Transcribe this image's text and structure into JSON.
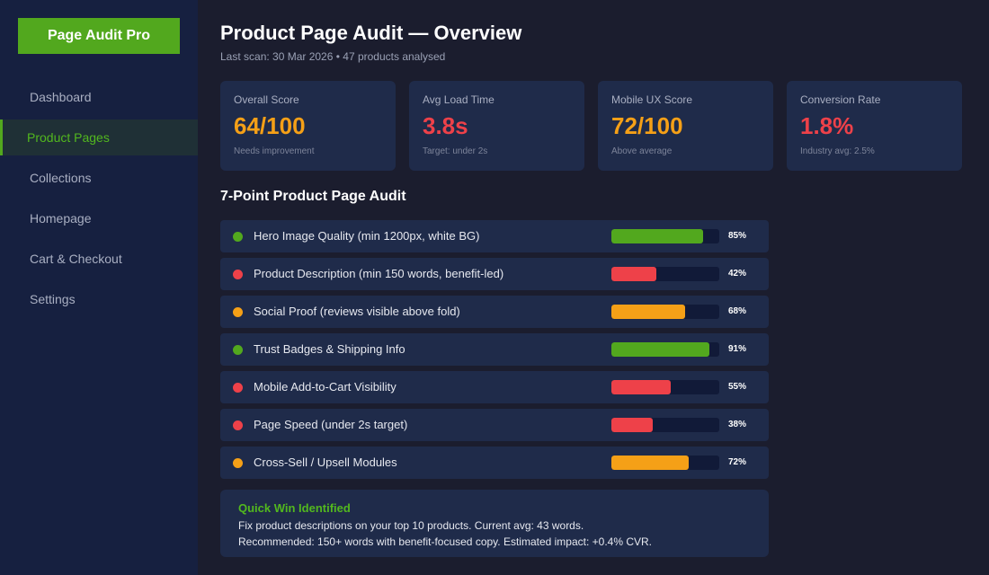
{
  "sidebar": {
    "logo": "Page Audit Pro",
    "items": [
      {
        "label": "Dashboard",
        "active": false
      },
      {
        "label": "Product Pages",
        "active": true
      },
      {
        "label": "Collections",
        "active": false
      },
      {
        "label": "Homepage",
        "active": false
      },
      {
        "label": "Cart & Checkout",
        "active": false
      },
      {
        "label": "Settings",
        "active": false
      }
    ]
  },
  "header": {
    "title": "Product Page Audit — Overview",
    "subtitle": "Last scan: 30 Mar 2026 • 47 products analysed"
  },
  "cards": [
    {
      "label": "Overall Score",
      "value": "64/100",
      "note": "Needs improvement",
      "color": "#f5a017"
    },
    {
      "label": "Avg Load Time",
      "value": "3.8s",
      "note": "Target: under 2s",
      "color": "#ee4149"
    },
    {
      "label": "Mobile UX Score",
      "value": "72/100",
      "note": "Above average",
      "color": "#f5a017"
    },
    {
      "label": "Conversion Rate",
      "value": "1.8%",
      "note": "Industry avg: 2.5%",
      "color": "#ee4149"
    }
  ],
  "audit": {
    "title": "7-Point Product Page Audit",
    "items": [
      {
        "label": "Hero Image Quality (min 1200px, white BG)",
        "percent": 85,
        "pct_label": "85%",
        "status": "good"
      },
      {
        "label": "Product Description (min 150 words, benefit-led)",
        "percent": 42,
        "pct_label": "42%",
        "status": "bad"
      },
      {
        "label": "Social Proof (reviews visible above fold)",
        "percent": 68,
        "pct_label": "68%",
        "status": "warn"
      },
      {
        "label": "Trust Badges & Shipping Info",
        "percent": 91,
        "pct_label": "91%",
        "status": "good"
      },
      {
        "label": "Mobile Add-to-Cart Visibility",
        "percent": 55,
        "pct_label": "55%",
        "status": "bad"
      },
      {
        "label": "Page Speed (under 2s target)",
        "percent": 38,
        "pct_label": "38%",
        "status": "bad"
      },
      {
        "label": "Cross-Sell / Upsell Modules",
        "percent": 72,
        "pct_label": "72%",
        "status": "warn"
      }
    ]
  },
  "status_colors": {
    "good": "#52a81e",
    "warn": "#f5a017",
    "bad": "#ee4149"
  },
  "quick_win": {
    "title": "Quick Win Identified",
    "line1": "Fix product descriptions on your top 10 products. Current avg: 43 words.",
    "line2": "Recommended: 150+ words with benefit-focused copy. Estimated impact: +0.4% CVR."
  }
}
